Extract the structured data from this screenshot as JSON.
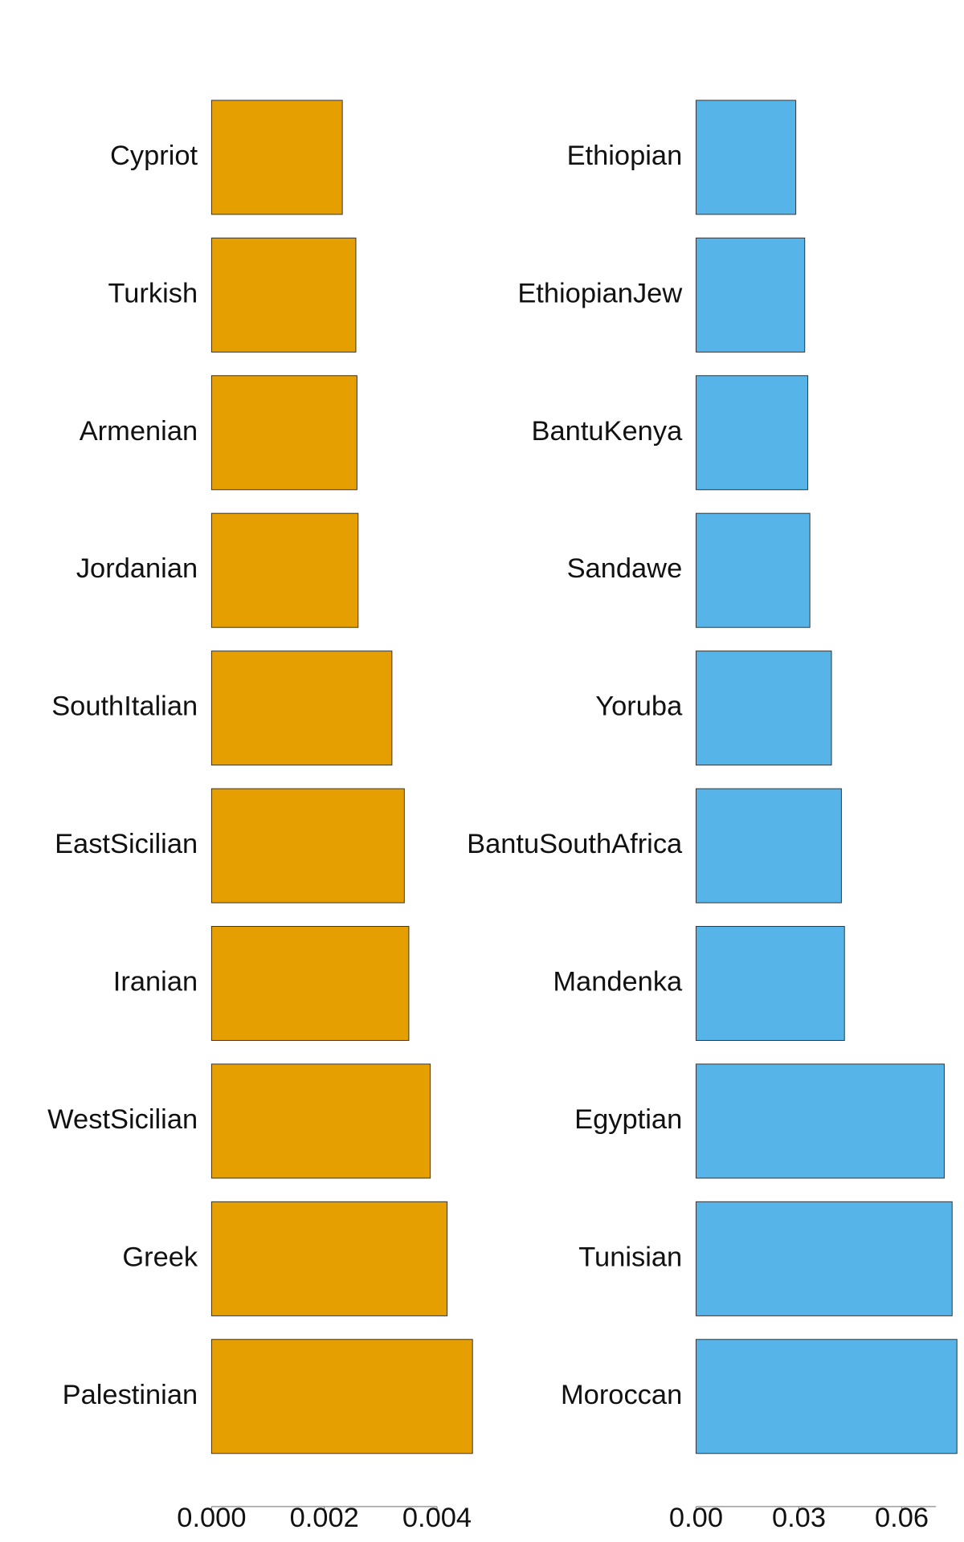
{
  "chart_data": [
    {
      "type": "barh",
      "color": "#e69f00",
      "categories": [
        "Cypriot",
        "Turkish",
        "Armenian",
        "Jordanian",
        "SouthItalian",
        "EastSicilian",
        "Iranian",
        "WestSicilian",
        "Greek",
        "Palestinian"
      ],
      "values": [
        0.00232,
        0.00256,
        0.00258,
        0.0026,
        0.0032,
        0.00342,
        0.0035,
        0.00388,
        0.00418,
        0.00463
      ],
      "xlim": [
        0,
        0.004
      ],
      "xticks": [
        {
          "value": 0,
          "label": "0.000"
        },
        {
          "value": 0.002,
          "label": "0.002"
        },
        {
          "value": 0.004,
          "label": "0.004"
        }
      ]
    },
    {
      "type": "barh",
      "color": "#56b4e9",
      "categories": [
        "Ethiopian",
        "EthiopianJew",
        "BantuKenya",
        "Sandawe",
        "Yoruba",
        "BantuSouthAfrica",
        "Mandenka",
        "Egyptian",
        "Tunisian",
        "Moroccan"
      ],
      "values": [
        0.0291,
        0.0317,
        0.0326,
        0.0332,
        0.0395,
        0.0424,
        0.0433,
        0.0724,
        0.0747,
        0.0761
      ],
      "xlim": [
        0,
        0.07
      ],
      "xticks": [
        {
          "value": 0,
          "label": "0.00"
        },
        {
          "value": 0.03,
          "label": "0.03"
        },
        {
          "value": 0.06,
          "label": "0.06"
        }
      ]
    }
  ]
}
